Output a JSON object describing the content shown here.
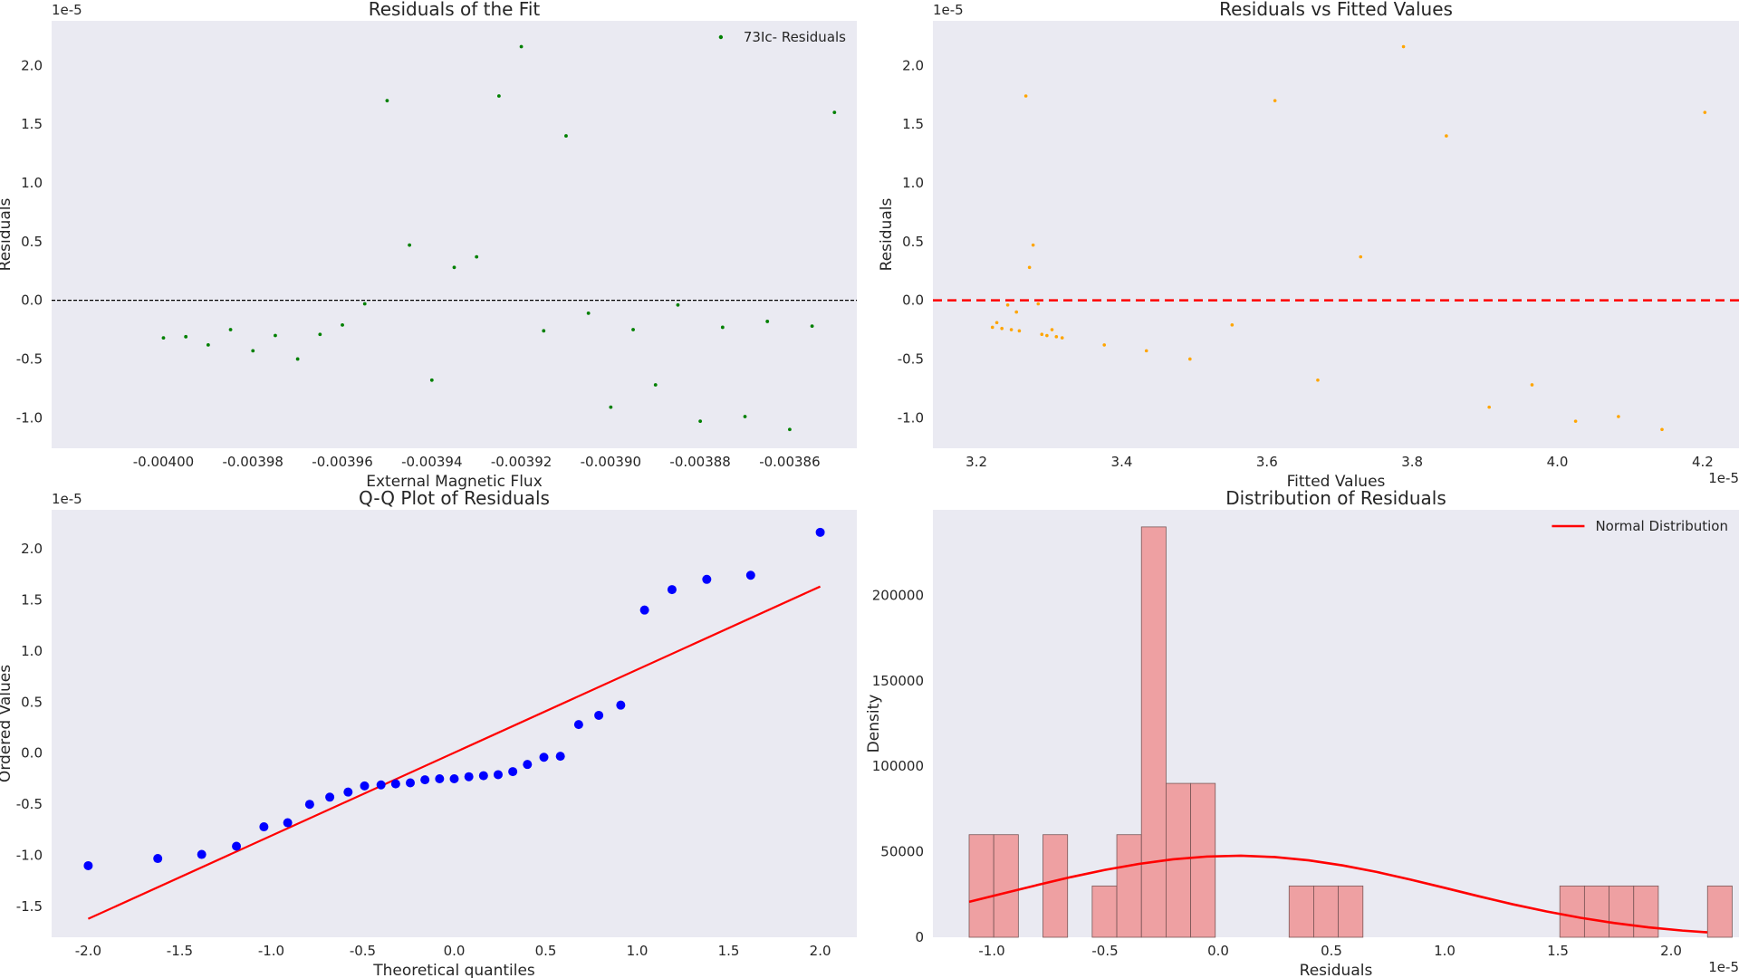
{
  "chart_data": [
    {
      "type": "scatter",
      "title": "Residuals of the Fit",
      "xlabel": "External Magnetic Flux",
      "ylabel": "Residuals",
      "y_offset_text": "1e-5",
      "xlim": [
        -0.004025,
        -0.003845
      ],
      "ylim": [
        -1.26,
        2.38
      ],
      "xticks": [
        -0.004,
        -0.00398,
        -0.00396,
        -0.00394,
        -0.00392,
        -0.0039,
        -0.00388,
        -0.00386
      ],
      "xtick_labels": [
        "-0.00400",
        "-0.00398",
        "-0.00396",
        "-0.00394",
        "-0.00392",
        "-0.00390",
        "-0.00388",
        "-0.00386"
      ],
      "yticks": [
        -1.0,
        -0.5,
        0.0,
        0.5,
        1.0,
        1.5,
        2.0
      ],
      "ytick_labels": [
        "-1.0",
        "-0.5",
        "0.0",
        "0.5",
        "1.0",
        "1.5",
        "2.0"
      ],
      "grid": false,
      "legend_position": "top-right",
      "reference_line": {
        "y": 0,
        "style": "dashed",
        "color": "#000000"
      },
      "series": [
        {
          "name": "73Ic- Residuals",
          "color": "#008000",
          "x": [
            -0.004,
            -0.003995,
            -0.00399,
            -0.003985,
            -0.00398,
            -0.003975,
            -0.00397,
            -0.003965,
            -0.00396,
            -0.003955,
            -0.00395,
            -0.003945,
            -0.00394,
            -0.003935,
            -0.00393,
            -0.003925,
            -0.00392,
            -0.003915,
            -0.00391,
            -0.003905,
            -0.0039,
            -0.003895,
            -0.00389,
            -0.003885,
            -0.00388,
            -0.003875,
            -0.00387,
            -0.003865,
            -0.00386,
            -0.003855,
            -0.00385
          ],
          "y": [
            -0.32,
            -0.31,
            -0.38,
            -0.25,
            -0.43,
            -0.3,
            -0.5,
            -0.29,
            -0.21,
            -0.03,
            1.7,
            0.47,
            -0.68,
            0.28,
            0.37,
            1.74,
            2.16,
            -0.26,
            1.4,
            -0.11,
            -0.91,
            -0.25,
            -0.72,
            -0.04,
            -1.03,
            -0.23,
            -0.99,
            -0.18,
            -1.1,
            -0.22,
            1.6
          ]
        }
      ]
    },
    {
      "type": "scatter",
      "title": "Residuals vs Fitted Values",
      "xlabel": "Fitted Values",
      "ylabel": "Residuals",
      "x_offset_text": "1e-5",
      "y_offset_text": "1e-5",
      "xlim": [
        3.14,
        4.25
      ],
      "ylim": [
        -1.26,
        2.38
      ],
      "xticks": [
        3.2,
        3.4,
        3.6,
        3.8,
        4.0,
        4.2
      ],
      "xtick_labels": [
        "3.2",
        "3.4",
        "3.6",
        "3.8",
        "4.0",
        "4.2"
      ],
      "yticks": [
        -1.0,
        -0.5,
        0.0,
        0.5,
        1.0,
        1.5,
        2.0
      ],
      "ytick_labels": [
        "-1.0",
        "-0.5",
        "0.0",
        "0.5",
        "1.0",
        "1.5",
        "2.0"
      ],
      "grid": false,
      "reference_line": {
        "y": 0,
        "style": "dashed",
        "color": "#ff0000"
      },
      "series": [
        {
          "color": "#ffa500",
          "x": [
            3.222,
            3.228,
            3.235,
            3.243,
            3.248,
            3.255,
            3.259,
            3.268,
            3.273,
            3.278,
            3.285,
            3.29,
            3.297,
            3.304,
            3.31,
            3.318,
            3.376,
            3.434,
            3.494,
            3.552,
            3.611,
            3.67,
            3.729,
            3.788,
            3.847,
            3.906,
            3.965,
            4.025,
            4.084,
            4.144,
            4.203
          ],
          "y": [
            -0.23,
            -0.19,
            -0.24,
            -0.04,
            -0.25,
            -0.1,
            -0.26,
            1.74,
            0.28,
            0.47,
            -0.03,
            -0.29,
            -0.3,
            -0.25,
            -0.31,
            -0.32,
            -0.38,
            -0.43,
            -0.5,
            -0.21,
            1.7,
            -0.68,
            0.37,
            2.16,
            1.4,
            -0.91,
            -0.72,
            -1.03,
            -0.99,
            -1.1,
            1.6
          ]
        }
      ]
    },
    {
      "type": "scatter",
      "title": "Q-Q Plot of Residuals",
      "xlabel": "Theoretical quantiles",
      "ylabel": "Ordered Values",
      "y_offset_text": "1e-5",
      "xlim": [
        -2.2,
        2.2
      ],
      "ylim": [
        -1.8,
        2.38
      ],
      "xticks": [
        -2.0,
        -1.5,
        -1.0,
        -0.5,
        0.0,
        0.5,
        1.0,
        1.5,
        2.0
      ],
      "xtick_labels": [
        "-2.0",
        "-1.5",
        "-1.0",
        "-0.5",
        "0.0",
        "0.5",
        "1.0",
        "1.5",
        "2.0"
      ],
      "yticks": [
        -1.5,
        -1.0,
        -0.5,
        0.0,
        0.5,
        1.0,
        1.5,
        2.0
      ],
      "ytick_labels": [
        "-1.5",
        "-1.0",
        "-0.5",
        "0.0",
        "0.5",
        "1.0",
        "1.5",
        "2.0"
      ],
      "grid": false,
      "fit_line": {
        "x": [
          -2.0,
          2.0
        ],
        "y": [
          -1.62,
          1.63
        ],
        "color": "#ff0000"
      },
      "series": [
        {
          "color": "#0000ff",
          "x": [
            -2.0,
            -1.62,
            -1.38,
            -1.19,
            -1.04,
            -0.91,
            -0.79,
            -0.68,
            -0.58,
            -0.49,
            -0.4,
            -0.32,
            -0.24,
            -0.16,
            -0.08,
            0.0,
            0.08,
            0.16,
            0.24,
            0.32,
            0.4,
            0.49,
            0.58,
            0.68,
            0.79,
            0.91,
            1.04,
            1.19,
            1.38,
            1.62,
            2.0
          ],
          "y": [
            -1.1,
            -1.03,
            -0.99,
            -0.91,
            -0.72,
            -0.68,
            -0.5,
            -0.43,
            -0.38,
            -0.32,
            -0.31,
            -0.3,
            -0.29,
            -0.26,
            -0.25,
            -0.25,
            -0.23,
            -0.22,
            -0.21,
            -0.18,
            -0.11,
            -0.04,
            -0.03,
            0.28,
            0.37,
            0.47,
            1.4,
            1.6,
            1.7,
            1.74,
            2.16
          ]
        }
      ]
    },
    {
      "type": "bar",
      "title": "Distribution of Residuals",
      "xlabel": "Residuals",
      "ylabel": "Density",
      "x_offset_text": "1e-5",
      "xlim": [
        -1.26,
        2.3
      ],
      "ylim": [
        0,
        250000
      ],
      "xticks": [
        -1.0,
        -0.5,
        0.0,
        0.5,
        1.0,
        1.5,
        2.0
      ],
      "xtick_labels": [
        "-1.0",
        "-0.5",
        "0.0",
        "0.5",
        "1.0",
        "1.5",
        "2.0"
      ],
      "yticks": [
        0,
        50000,
        100000,
        150000,
        200000
      ],
      "ytick_labels": [
        "0",
        "50000",
        "100000",
        "150000",
        "200000"
      ],
      "grid": false,
      "legend_position": "top-right",
      "histogram": {
        "color": "#f08080",
        "bin_start": -1.1,
        "bin_width": 0.1087,
        "counts": [
          60000,
          60000,
          0,
          60000,
          0,
          30000,
          60000,
          240000,
          90000,
          90000,
          0,
          0,
          0,
          30000,
          30000,
          30000,
          0,
          0,
          0,
          0,
          0,
          0,
          0,
          0,
          30000,
          30000,
          30000,
          30000,
          0,
          0,
          30000
        ]
      },
      "series": [
        {
          "name": "Normal Distribution",
          "color": "#ff0000",
          "x": [
            -1.1,
            -0.95,
            -0.8,
            -0.65,
            -0.5,
            -0.35,
            -0.2,
            -0.05,
            0.1,
            0.25,
            0.4,
            0.55,
            0.7,
            0.85,
            1.0,
            1.15,
            1.3,
            1.45,
            1.6,
            1.75,
            1.9,
            2.05,
            2.16
          ],
          "y": [
            20700,
            25600,
            30500,
            35200,
            39400,
            42900,
            45600,
            47200,
            47700,
            46900,
            45000,
            42000,
            38200,
            33700,
            28900,
            24000,
            19300,
            15100,
            11400,
            8300,
            5800,
            3900,
            2900
          ]
        }
      ]
    }
  ]
}
